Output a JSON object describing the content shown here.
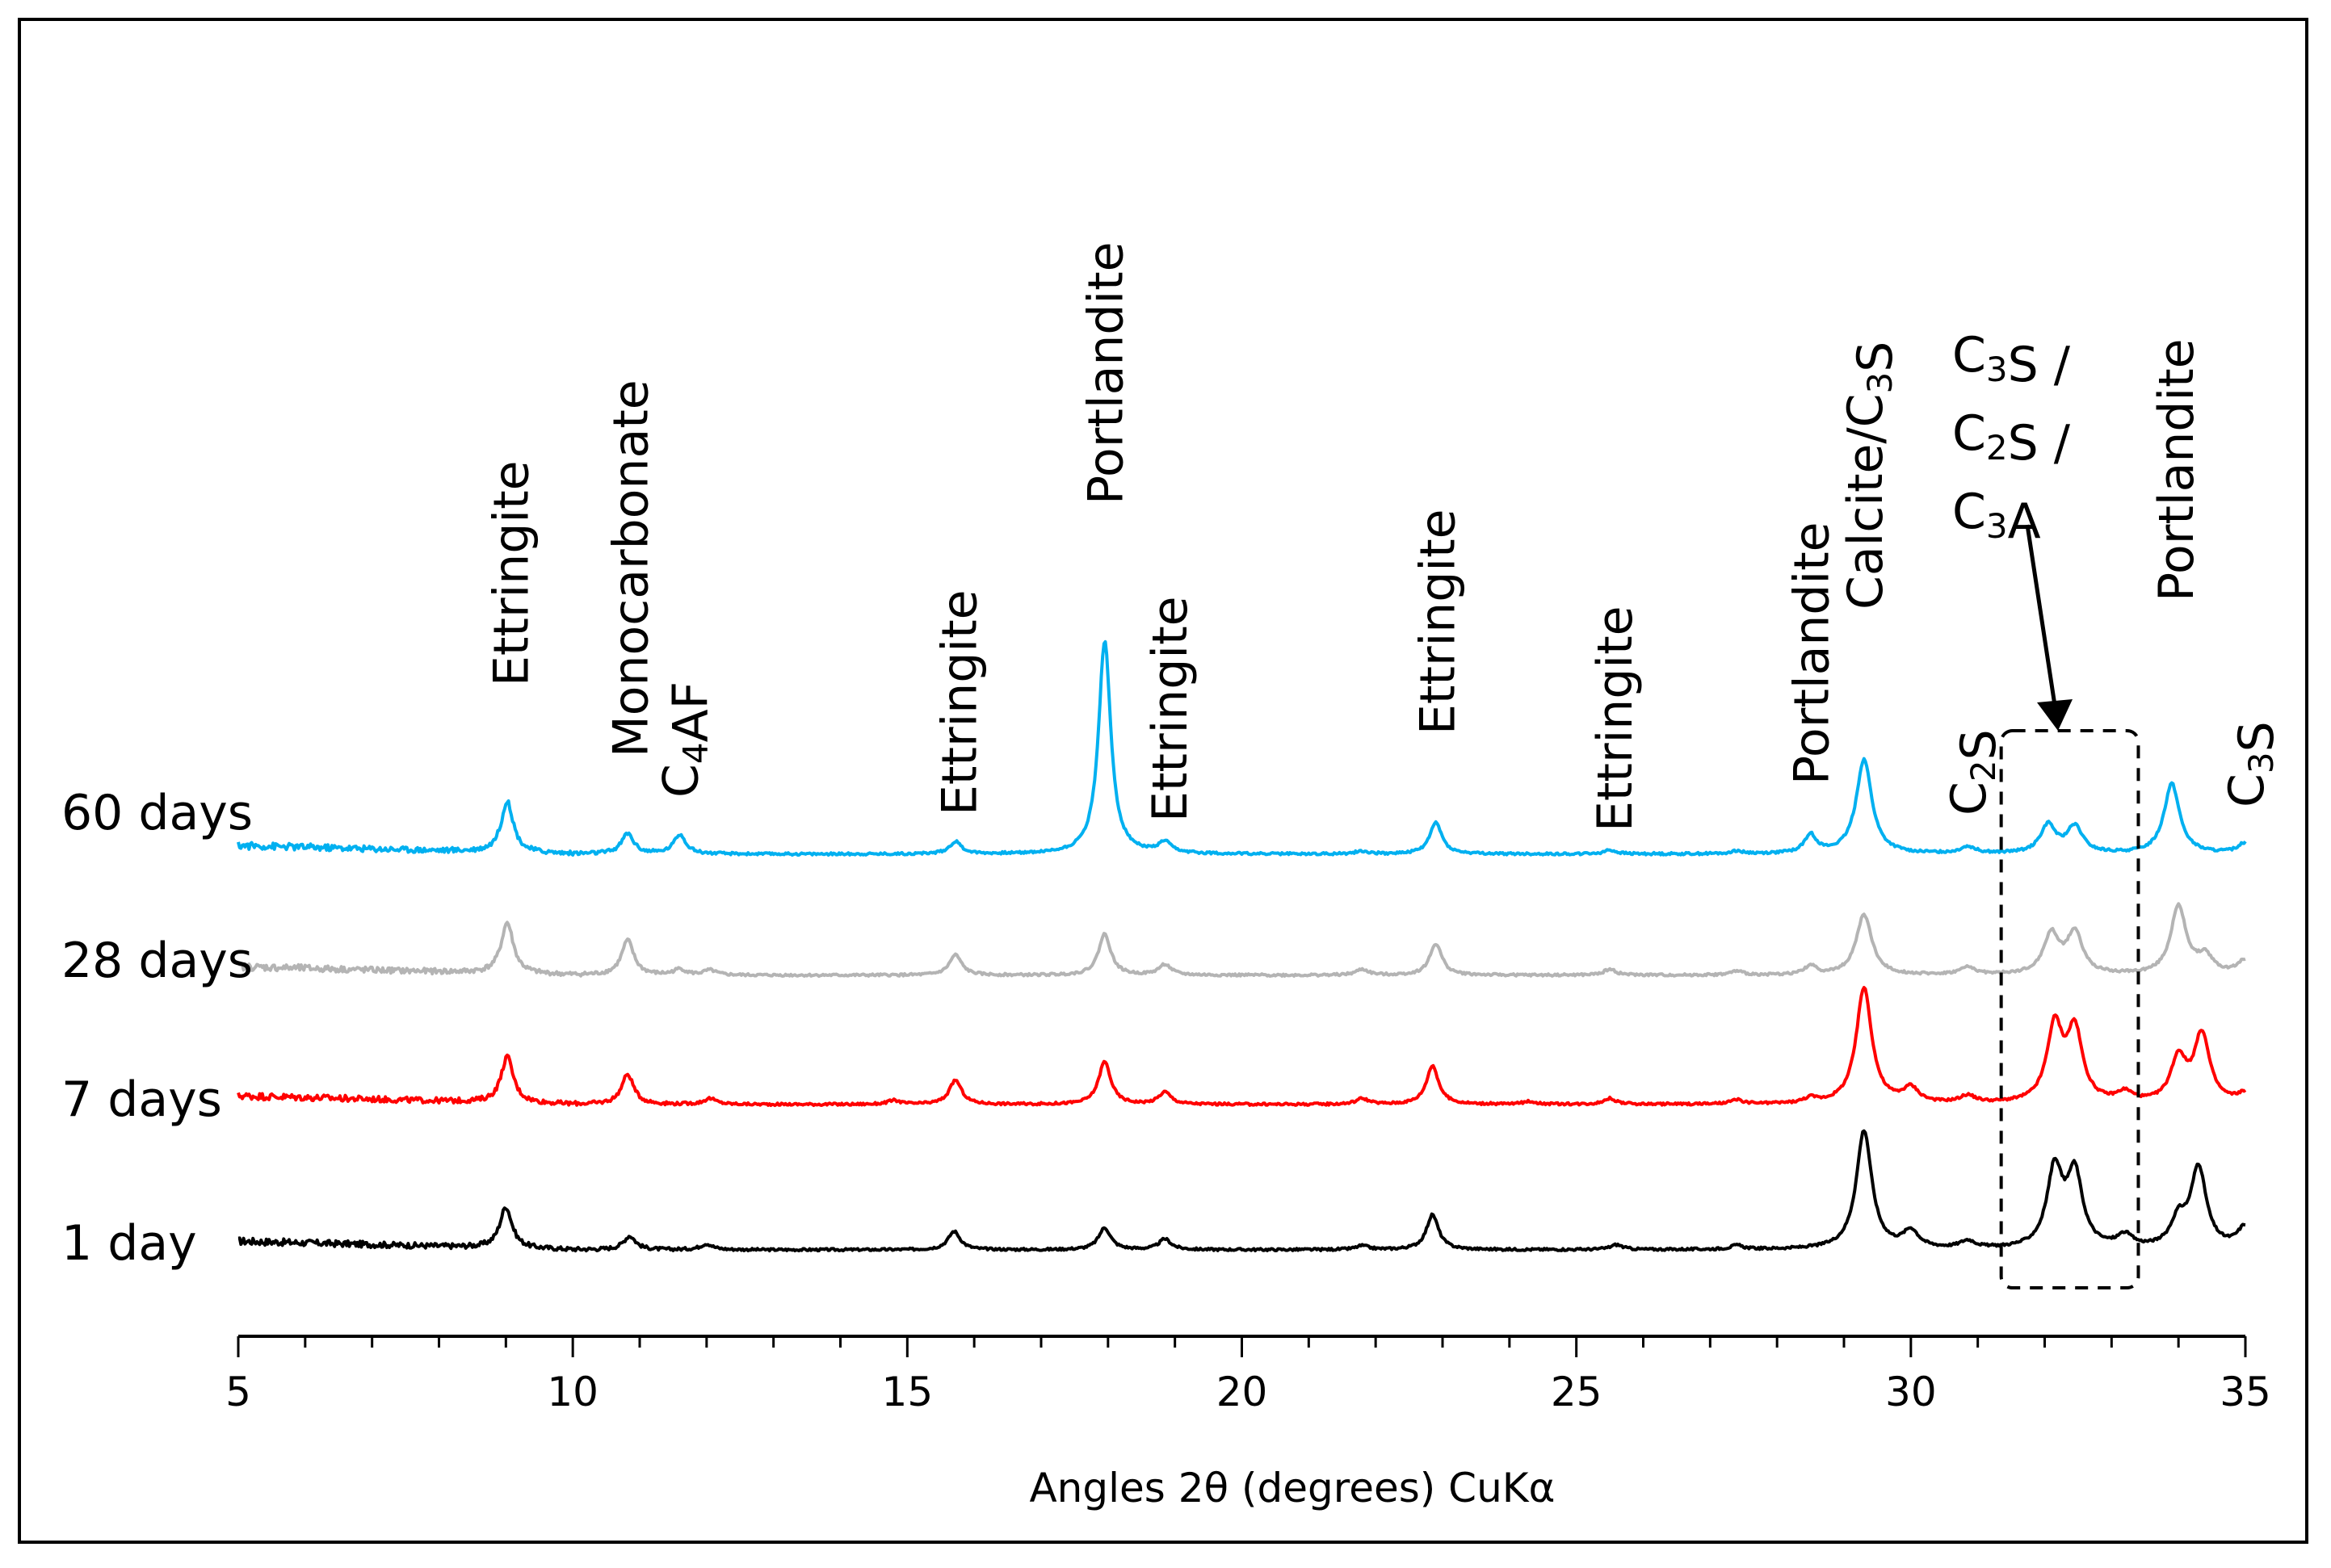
{
  "chart_data": {
    "type": "line",
    "title": "",
    "xlabel": "Angles 2θ (degrees) CuKα",
    "ylabel": "",
    "xlim": [
      5,
      35
    ],
    "xticks": [
      "5",
      "10",
      "15",
      "20",
      "25",
      "30",
      "35"
    ],
    "grid": false,
    "series": [
      {
        "name": "1 day",
        "color": "#000000",
        "baseline": 0,
        "peaks": [
          [
            9.0,
            0.85
          ],
          [
            10.85,
            0.28
          ],
          [
            12.0,
            0.12
          ],
          [
            15.7,
            0.38
          ],
          [
            17.95,
            0.45
          ],
          [
            18.85,
            0.22
          ],
          [
            21.8,
            0.08
          ],
          [
            22.85,
            0.72
          ],
          [
            25.6,
            0.1
          ],
          [
            27.4,
            0.08
          ],
          [
            29.3,
            2.45
          ],
          [
            30.0,
            0.35
          ],
          [
            30.85,
            0.15
          ],
          [
            32.15,
            1.6
          ],
          [
            32.45,
            1.5
          ],
          [
            33.2,
            0.25
          ],
          [
            34.0,
            0.55
          ],
          [
            34.3,
            1.65
          ],
          [
            35.0,
            0.45
          ]
        ]
      },
      {
        "name": "7 days",
        "color": "#ff0000",
        "baseline": 1,
        "peaks": [
          [
            9.02,
            0.95
          ],
          [
            10.82,
            0.62
          ],
          [
            12.05,
            0.12
          ],
          [
            14.8,
            0.08
          ],
          [
            15.72,
            0.5
          ],
          [
            17.95,
            0.88
          ],
          [
            18.85,
            0.25
          ],
          [
            21.8,
            0.12
          ],
          [
            22.85,
            0.8
          ],
          [
            24.3,
            0.06
          ],
          [
            25.5,
            0.12
          ],
          [
            27.4,
            0.08
          ],
          [
            28.5,
            0.1
          ],
          [
            29.3,
            2.4
          ],
          [
            30.0,
            0.3
          ],
          [
            30.85,
            0.15
          ],
          [
            32.15,
            1.55
          ],
          [
            32.45,
            1.45
          ],
          [
            33.2,
            0.2
          ],
          [
            34.0,
            0.9
          ],
          [
            34.35,
            1.4
          ],
          [
            35.0,
            0.2
          ]
        ]
      },
      {
        "name": "28 days",
        "color": "#b4b4b4",
        "baseline": 2,
        "peaks": [
          [
            9.02,
            1.05
          ],
          [
            10.82,
            0.72
          ],
          [
            11.6,
            0.12
          ],
          [
            12.05,
            0.1
          ],
          [
            15.72,
            0.42
          ],
          [
            17.95,
            0.85
          ],
          [
            18.85,
            0.22
          ],
          [
            21.8,
            0.12
          ],
          [
            22.9,
            0.65
          ],
          [
            25.5,
            0.12
          ],
          [
            27.4,
            0.08
          ],
          [
            28.5,
            0.18
          ],
          [
            29.3,
            1.25
          ],
          [
            30.85,
            0.15
          ],
          [
            32.1,
            0.82
          ],
          [
            32.45,
            0.85
          ],
          [
            34.0,
            1.4
          ],
          [
            34.4,
            0.35
          ],
          [
            35.0,
            0.3
          ]
        ]
      },
      {
        "name": "60 days",
        "color": "#00b0f0",
        "baseline": 3,
        "peaks": [
          [
            9.02,
            1.05
          ],
          [
            10.82,
            0.42
          ],
          [
            11.6,
            0.4
          ],
          [
            15.72,
            0.25
          ],
          [
            17.95,
            4.4
          ],
          [
            18.85,
            0.22
          ],
          [
            21.8,
            0.06
          ],
          [
            22.9,
            0.65
          ],
          [
            25.5,
            0.08
          ],
          [
            27.4,
            0.06
          ],
          [
            28.5,
            0.38
          ],
          [
            29.3,
            1.95
          ],
          [
            30.85,
            0.14
          ],
          [
            32.05,
            0.58
          ],
          [
            32.45,
            0.55
          ],
          [
            33.9,
            1.45
          ],
          [
            35.0,
            0.22
          ]
        ]
      }
    ],
    "annotations": [
      {
        "label": "Ettringite",
        "x": 9.0
      },
      {
        "label": "Monocarbonate",
        "x": 10.85
      },
      {
        "label": "C4AF",
        "x": 11.6
      },
      {
        "label": "Ettringite",
        "x": 15.7
      },
      {
        "label": "Portlandite",
        "x": 17.95
      },
      {
        "label": "Ettringite",
        "x": 18.85
      },
      {
        "label": "Ettringite",
        "x": 22.85
      },
      {
        "label": "Ettringite",
        "x": 25.5
      },
      {
        "label": "Portlandite",
        "x": 28.5
      },
      {
        "label": "Calcite/C3S",
        "x": 29.3
      },
      {
        "label": "C2S",
        "x": 30.85
      },
      {
        "label": "C3S / C2S / C3A",
        "x": 32.3
      },
      {
        "label": "Portlandite",
        "x": 33.95
      },
      {
        "label": "C3S",
        "x": 35.0
      }
    ]
  }
}
